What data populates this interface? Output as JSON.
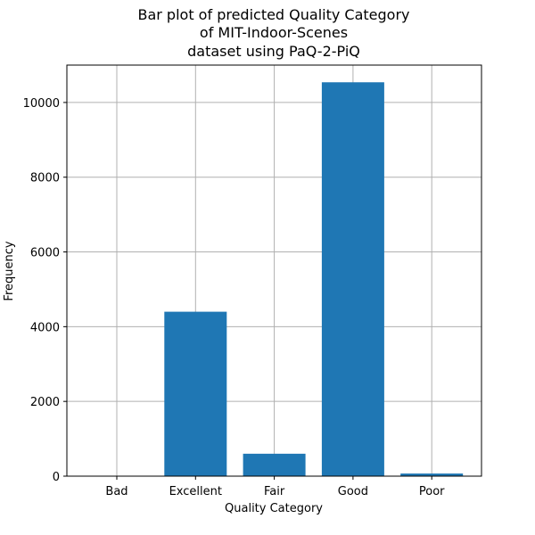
{
  "chart_data": {
    "type": "bar",
    "title_lines": [
      "Bar plot of predicted Quality Category",
      "of MIT-Indoor-Scenes",
      "dataset using PaQ-2-PiQ"
    ],
    "xlabel": "Quality Category",
    "ylabel": "Frequency",
    "categories": [
      "Bad",
      "Excellent",
      "Fair",
      "Good",
      "Poor"
    ],
    "values": [
      3,
      4400,
      600,
      10540,
      70
    ],
    "ylim": [
      0,
      11000
    ],
    "yticks": [
      0,
      2000,
      4000,
      6000,
      8000,
      10000
    ],
    "ytick_labels": [
      "0",
      "2000",
      "4000",
      "6000",
      "8000",
      "10000"
    ],
    "bar_color": "#1f77b4",
    "grid": true
  }
}
